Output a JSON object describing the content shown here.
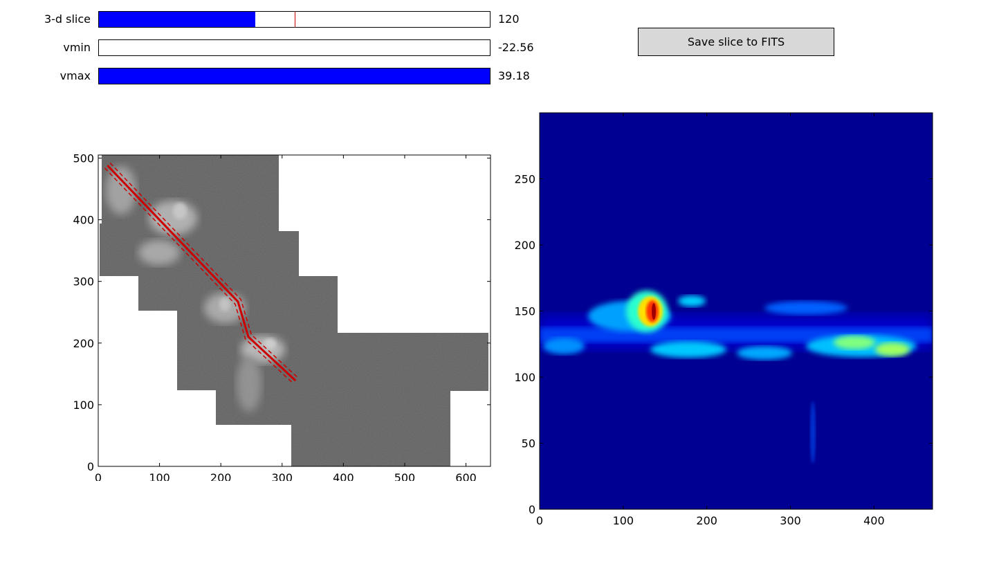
{
  "sliders": [
    {
      "label": "3-d slice",
      "value_text": "120",
      "fill_fraction": 0.4,
      "marker_fraction": 0.5
    },
    {
      "label": "vmin",
      "value_text": "-22.56",
      "fill_fraction": 0.0
    },
    {
      "label": "vmax",
      "value_text": "39.18",
      "fill_fraction": 1.0
    }
  ],
  "save_button_label": "Save slice to FITS",
  "chart_data": [
    {
      "type": "heatmap",
      "colormap": "grayscale",
      "xlim": [
        0,
        640
      ],
      "ylim": [
        0,
        505
      ],
      "xticks": [
        0,
        100,
        200,
        300,
        400,
        500,
        600
      ],
      "yticks": [
        0,
        100,
        200,
        300,
        400,
        500
      ],
      "tick_labels_x": [
        "0",
        "100",
        "200",
        "300",
        "400",
        "500",
        "600"
      ],
      "tick_labels_y": [
        "0",
        "100",
        "200",
        "300",
        "400",
        "500"
      ],
      "path_color": "#cc0000",
      "path_points": [
        [
          15,
          488
        ],
        [
          228,
          267
        ],
        [
          245,
          210
        ],
        [
          322,
          139
        ]
      ],
      "path_width": 12
    },
    {
      "type": "heatmap",
      "colormap": "jet",
      "xlim": [
        0,
        470
      ],
      "ylim": [
        0,
        300
      ],
      "xticks": [
        0,
        100,
        200,
        300,
        400
      ],
      "yticks": [
        0,
        50,
        100,
        150,
        200,
        250
      ],
      "tick_labels_x": [
        "0",
        "100",
        "200",
        "300",
        "400"
      ],
      "tick_labels_y": [
        "0",
        "50",
        "100",
        "150",
        "200",
        "250"
      ]
    }
  ]
}
